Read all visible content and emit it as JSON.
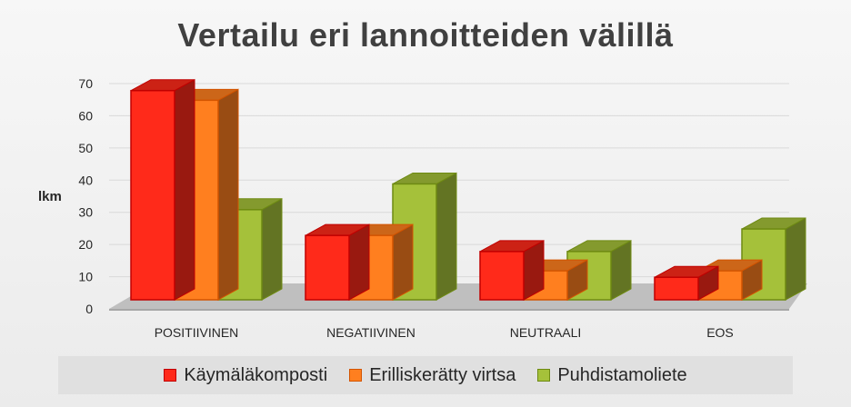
{
  "chart_data": {
    "type": "bar",
    "title": "Vertailu eri lannoitteiden välillä",
    "ylabel": "lkm",
    "xlabel": "",
    "ylim": [
      0,
      70
    ],
    "yticks": [
      0,
      10,
      20,
      30,
      40,
      50,
      60,
      70
    ],
    "categories": [
      "POSITIIVINEN",
      "NEGATIIVINEN",
      "NEUTRAALI",
      "EOS"
    ],
    "series": [
      {
        "name": "Käymäläkomposti",
        "values": [
          65,
          20,
          15,
          7
        ],
        "color": "#ff2a1a",
        "edge": "#c00000"
      },
      {
        "name": "Erilliskerätty virtsa",
        "values": [
          62,
          20,
          9,
          9
        ],
        "color": "#ff7f1f",
        "edge": "#d35400"
      },
      {
        "name": "Puhdistamoliete",
        "values": [
          28,
          36,
          15,
          22
        ],
        "color": "#a5c13a",
        "edge": "#6e8a12"
      }
    ],
    "grid": true,
    "legend_position": "bottom",
    "style": "3d-clustered-column"
  }
}
